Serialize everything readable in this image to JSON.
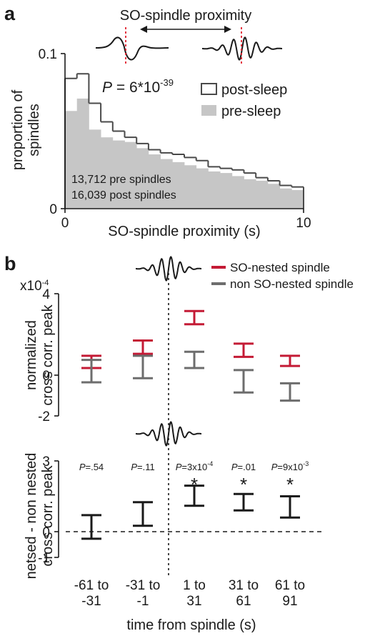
{
  "panel_a": {
    "letter": "a",
    "title": "SO-spindle proximity",
    "stat_p": "P",
    "stat_eq": " = 6*10",
    "stat_exp": "-39",
    "legend_post": "post-sleep",
    "legend_pre": "pre-sleep",
    "count_pre": "13,712 pre spindles",
    "count_post": "16,039 post spindles"
  },
  "panel_b": {
    "letter": "b",
    "exponent_prefix": "x10",
    "exponent": "-4",
    "legend_nested": "SO-nested spindle",
    "legend_non": "non SO-nested spindle",
    "sig_marker": "*"
  },
  "colors": {
    "nested": "#c41a35",
    "non_nested": "#6d6d6d",
    "pre_fill": "#c6c6c6",
    "post_line": "#4a4a4a",
    "marker_red": "#e2202d",
    "dark": "#1a1a1a"
  },
  "chart_data": [
    {
      "type": "bar",
      "title": "SO-spindle proximity",
      "xlabel": "SO-spindle proximity (s)",
      "ylabel": "proportion of spindles",
      "xlim": [
        0,
        10
      ],
      "ylim": [
        0,
        0.1
      ],
      "x_ticks": [
        "0",
        "10"
      ],
      "y_ticks": [
        "0",
        "0.1"
      ],
      "bin_edges": [
        0,
        0.5,
        1,
        1.5,
        2,
        2.5,
        3,
        3.5,
        4,
        4.5,
        5,
        5.5,
        6,
        6.5,
        7,
        7.5,
        8,
        8.5,
        9,
        9.5,
        10
      ],
      "series": [
        {
          "name": "post-sleep",
          "style": "step",
          "values": [
            0.084,
            0.087,
            0.068,
            0.056,
            0.05,
            0.046,
            0.042,
            0.038,
            0.036,
            0.035,
            0.033,
            0.031,
            0.027,
            0.026,
            0.025,
            0.023,
            0.02,
            0.018,
            0.015,
            0.014
          ]
        },
        {
          "name": "pre-sleep",
          "style": "filled",
          "values": [
            0.063,
            0.071,
            0.051,
            0.046,
            0.044,
            0.043,
            0.039,
            0.035,
            0.032,
            0.03,
            0.028,
            0.026,
            0.024,
            0.023,
            0.021,
            0.019,
            0.018,
            0.016,
            0.013,
            0.012
          ]
        }
      ]
    },
    {
      "type": "errorbar",
      "ylabel": "normalized cross corr. peak",
      "ylim": [
        -2,
        4
      ],
      "y_ticks": [
        "4",
        "0",
        "-2"
      ],
      "categories": [
        "-61 to -31",
        "-31 to -1",
        "1 to 31",
        "31 to 61",
        "61 to 91"
      ],
      "series": [
        {
          "name": "SO-nested spindle",
          "lower": [
            0.35,
            1.05,
            2.5,
            0.9,
            0.45
          ],
          "center": [
            0.65,
            1.4,
            2.85,
            1.25,
            0.7
          ],
          "upper": [
            0.95,
            1.7,
            3.15,
            1.55,
            0.95
          ]
        },
        {
          "name": "non SO-nested spindle",
          "lower": [
            -0.35,
            -0.15,
            0.35,
            -0.85,
            -1.25
          ],
          "center": [
            0.2,
            0.4,
            0.75,
            -0.3,
            -0.7
          ],
          "upper": [
            0.75,
            0.95,
            1.15,
            0.25,
            -0.4
          ]
        }
      ]
    },
    {
      "type": "errorbar",
      "xlabel": "time from spindle (s)",
      "ylabel": "netsed - non nested cross corr. peak",
      "ylim": [
        -1,
        3
      ],
      "y_ticks": [
        "3",
        "0",
        "-1"
      ],
      "x_tick_labels": [
        [
          "-61 to",
          "-31"
        ],
        [
          "-31 to",
          "-1"
        ],
        [
          "1 to",
          "31"
        ],
        [
          "31 to",
          "61"
        ],
        [
          "61 to",
          "91"
        ]
      ],
      "categories": [
        "-61 to -31",
        "-31 to -1",
        "1 to 31",
        "31 to 61",
        "61 to 91"
      ],
      "lower": [
        -0.3,
        0.25,
        1.1,
        0.9,
        0.6
      ],
      "center": [
        0.2,
        0.75,
        1.5,
        1.25,
        1.05
      ],
      "upper": [
        0.7,
        1.25,
        1.95,
        1.6,
        1.5
      ],
      "p_values": [
        "=.54",
        "=.11",
        "=3x10",
        "=.01",
        "=9x10"
      ],
      "p_exponents": [
        "",
        "",
        "-4",
        "",
        "-3"
      ],
      "p_label": "P",
      "significant": [
        false,
        false,
        true,
        true,
        true
      ]
    }
  ]
}
